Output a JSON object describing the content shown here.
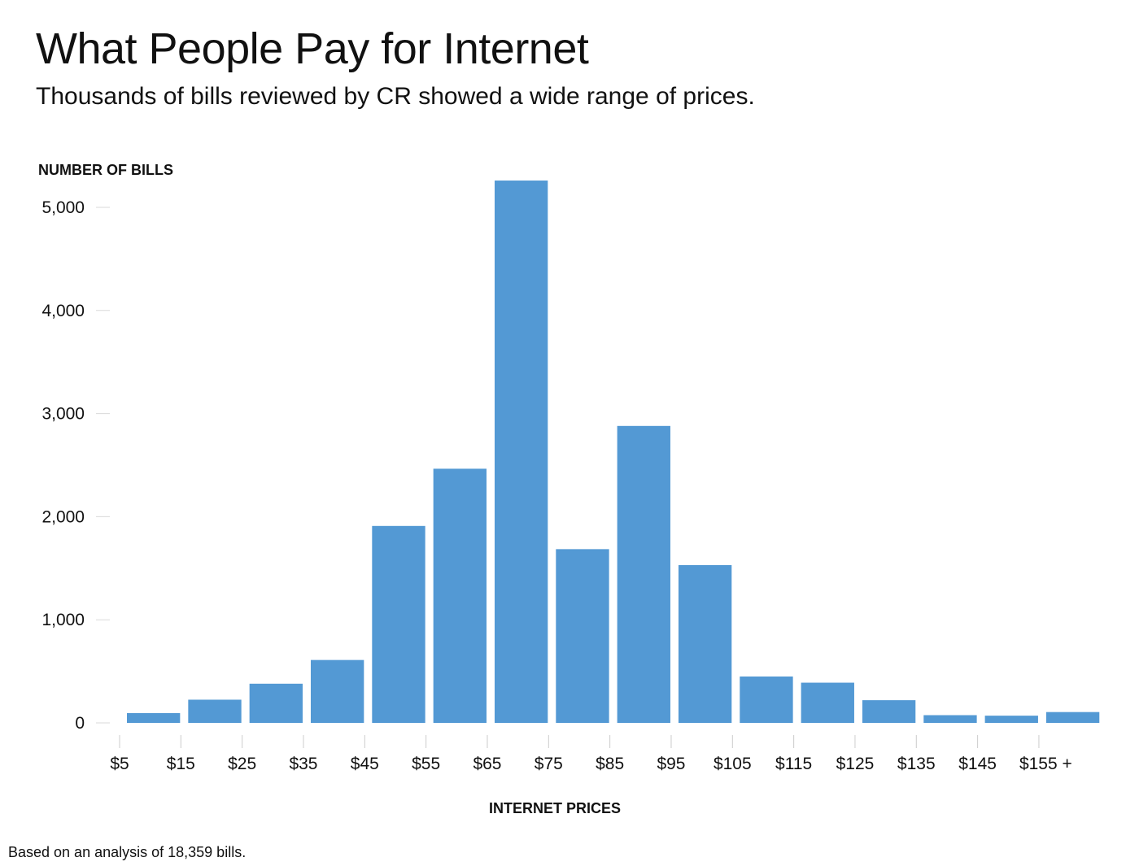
{
  "header": {
    "title": "What People Pay for Internet",
    "subtitle": "Thousands of bills reviewed by CR showed a wide range of prices."
  },
  "footnote": "Based on an analysis of 18,359 bills.",
  "colors": {
    "bar": "#5399d4",
    "gridline": "#d9d9d9",
    "tick": "#cccccc",
    "text": "#111111"
  },
  "chart_data": {
    "type": "bar",
    "title": "What People Pay for Internet",
    "subtitle": "Thousands of bills reviewed by CR showed a wide range of prices.",
    "xlabel": "INTERNET PRICES",
    "ylabel": "NUMBER OF BILLS",
    "x_tick_labels": [
      "$5",
      "$15",
      "$25",
      "$35",
      "$45",
      "$55",
      "$65",
      "$75",
      "$85",
      "$95",
      "$105",
      "$115",
      "$125",
      "$135",
      "$145",
      "$155 +"
    ],
    "categories": [
      "$5–$15",
      "$15–$25",
      "$25–$35",
      "$35–$45",
      "$45–$55",
      "$55–$65",
      "$65–$75",
      "$75–$85",
      "$85–$95",
      "$95–$105",
      "$105–$115",
      "$115–$125",
      "$125–$135",
      "$135–$145",
      "$145–$155",
      "$155 +"
    ],
    "values": [
      95,
      225,
      380,
      610,
      1910,
      2465,
      5260,
      1685,
      2880,
      1530,
      450,
      390,
      220,
      75,
      70,
      105
    ],
    "y_ticks": [
      0,
      1000,
      2000,
      3000,
      4000,
      5000
    ],
    "y_tick_labels": [
      "0",
      "1,000",
      "2,000",
      "3,000",
      "4,000",
      "5,000"
    ],
    "ylim": [
      0,
      5300
    ],
    "grid": false,
    "legend": "none"
  }
}
